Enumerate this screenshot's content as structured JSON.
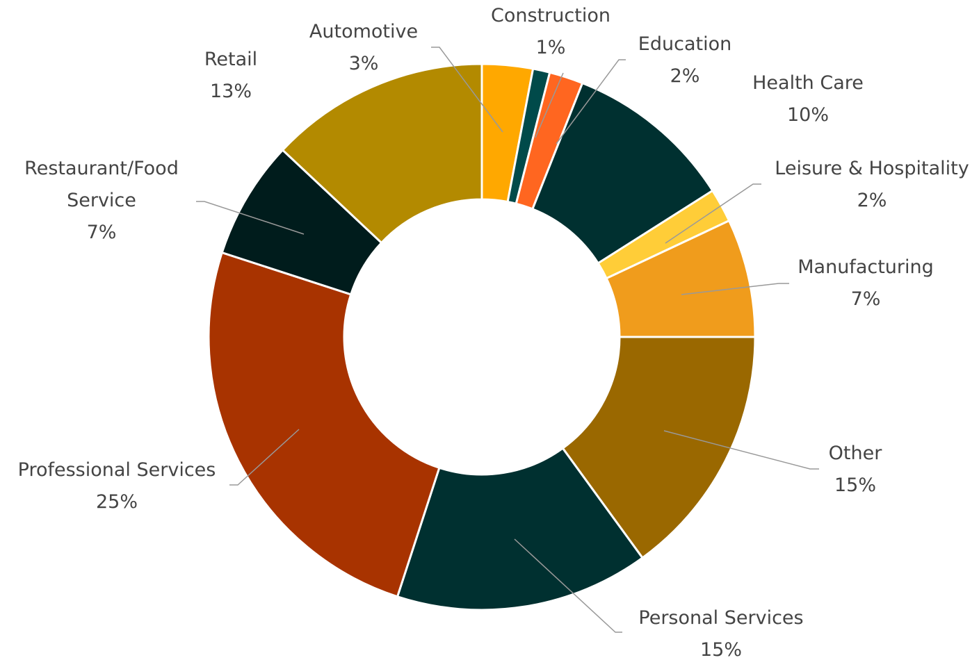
{
  "chart_data": {
    "type": "donut",
    "categories": [
      "Automotive",
      "Construction",
      "Education",
      "Health Care",
      "Leisure & Hospitality",
      "Manufacturing",
      "Other",
      "Personal Services",
      "Professional Services",
      "Restaurant/Food Service",
      "Retail"
    ],
    "values": [
      3,
      1,
      2,
      10,
      2,
      7,
      15,
      15,
      25,
      7,
      13
    ],
    "value_labels": [
      "3%",
      "1%",
      "2%",
      "10%",
      "2%",
      "7%",
      "15%",
      "15%",
      "25%",
      "7%",
      "13%"
    ],
    "colors": [
      "#ffa800",
      "#004a4a",
      "#ff6620",
      "#003030",
      "#ffcd38",
      "#f09c1c",
      "#9a6800",
      "#003030",
      "#a83300",
      "#001c1c",
      "#b38a00"
    ]
  }
}
